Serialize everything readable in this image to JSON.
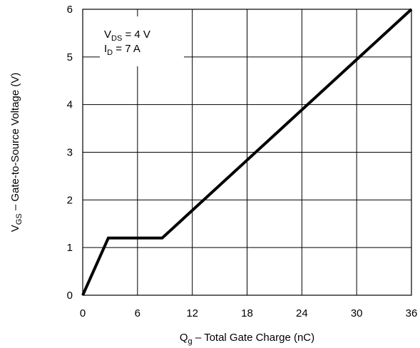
{
  "chart_data": {
    "type": "line",
    "title": "",
    "xlabel": {
      "symbol": "Q",
      "sub": "g",
      "text": "–  Total Gate Charge (nC)"
    },
    "ylabel": {
      "symbol": "V",
      "sub": "GS",
      "text": "–  Gate-to-Source Voltage (V)"
    },
    "xlim": [
      0,
      36
    ],
    "ylim": [
      0,
      6
    ],
    "xticks": [
      0,
      6,
      12,
      18,
      24,
      30,
      36
    ],
    "yticks": [
      0,
      1,
      2,
      3,
      4,
      5,
      6
    ],
    "xtick_labels": [
      "0",
      "6",
      "12",
      "18",
      "24",
      "30",
      "36"
    ],
    "ytick_labels": [
      "0",
      "1",
      "2",
      "3",
      "4",
      "5",
      "6"
    ],
    "grid": true,
    "series": [
      {
        "x": [
          0,
          2.8,
          8.7,
          36
        ],
        "y": [
          0,
          1.2,
          1.2,
          6.0
        ]
      }
    ],
    "annotations": [
      {
        "symbol": "V",
        "sub": "DS",
        "text": " = 4 V"
      },
      {
        "symbol": "I",
        "sub": "D",
        "text": " = 7 A"
      }
    ],
    "colors": {
      "line": "#000000",
      "grid": "#000000"
    }
  }
}
